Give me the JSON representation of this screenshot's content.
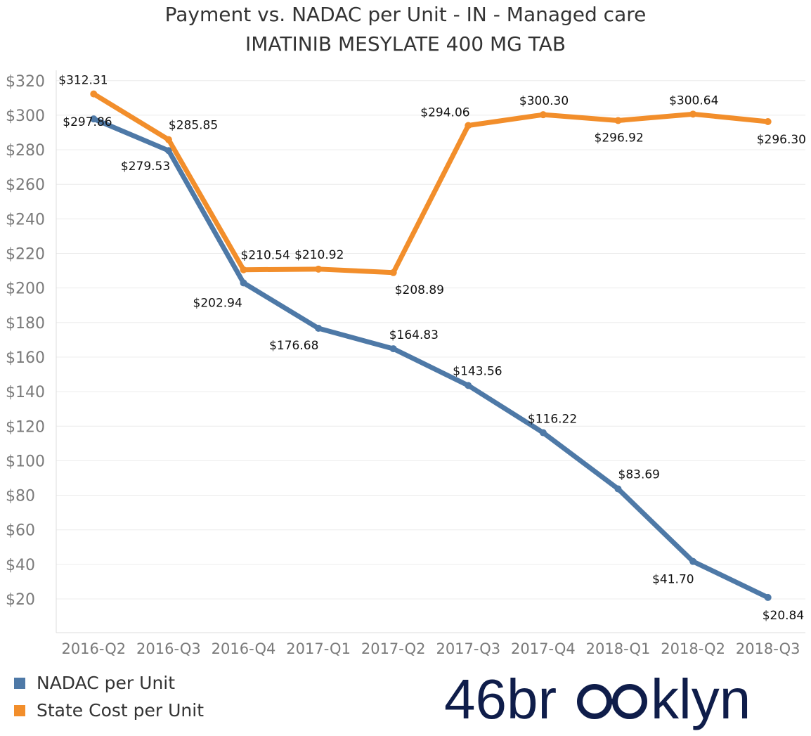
{
  "colors": {
    "nadac": "#4e79a7",
    "state": "#f28e2b",
    "grid": "#ececec",
    "tick": "#7a7a7a",
    "brand": "#0f1d4a"
  },
  "chart_data": {
    "type": "line",
    "title": "Payment vs. NADAC per Unit - IN - Managed care",
    "subtitle": "IMATINIB MESYLATE 400 MG TAB",
    "categories": [
      "2016-Q2",
      "2016-Q3",
      "2016-Q4",
      "2017-Q1",
      "2017-Q2",
      "2017-Q3",
      "2017-Q4",
      "2018-Q1",
      "2018-Q2",
      "2018-Q3"
    ],
    "y_ticks": [
      "$20",
      "$40",
      "$60",
      "$80",
      "$100",
      "$120",
      "$140",
      "$160",
      "$180",
      "$200",
      "$220",
      "$240",
      "$260",
      "$280",
      "$300",
      "$320"
    ],
    "ylim": [
      0,
      324
    ],
    "grid": true,
    "legend_position": "bottom-left",
    "series": [
      {
        "name": "NADAC per Unit",
        "values": [
          297.86,
          279.53,
          202.94,
          176.68,
          164.83,
          143.56,
          116.22,
          83.69,
          41.7,
          20.84
        ],
        "labels": [
          "$297.86",
          "$279.53",
          "$202.94",
          "$176.68",
          "$164.83",
          "$143.56",
          "$116.22",
          "$83.69",
          "$41.70",
          "$20.84"
        ]
      },
      {
        "name": "State Cost per Unit",
        "values": [
          312.31,
          285.85,
          210.54,
          210.92,
          208.89,
          294.06,
          300.3,
          296.92,
          300.64,
          296.3
        ],
        "labels": [
          "$312.31",
          "$285.85",
          "$210.54",
          "$210.92",
          "$208.89",
          "$294.06",
          "$300.30",
          "$296.92",
          "$300.64",
          "$296.30"
        ]
      }
    ]
  },
  "brand": {
    "prefix": "46br",
    "suffix": "klyn"
  }
}
